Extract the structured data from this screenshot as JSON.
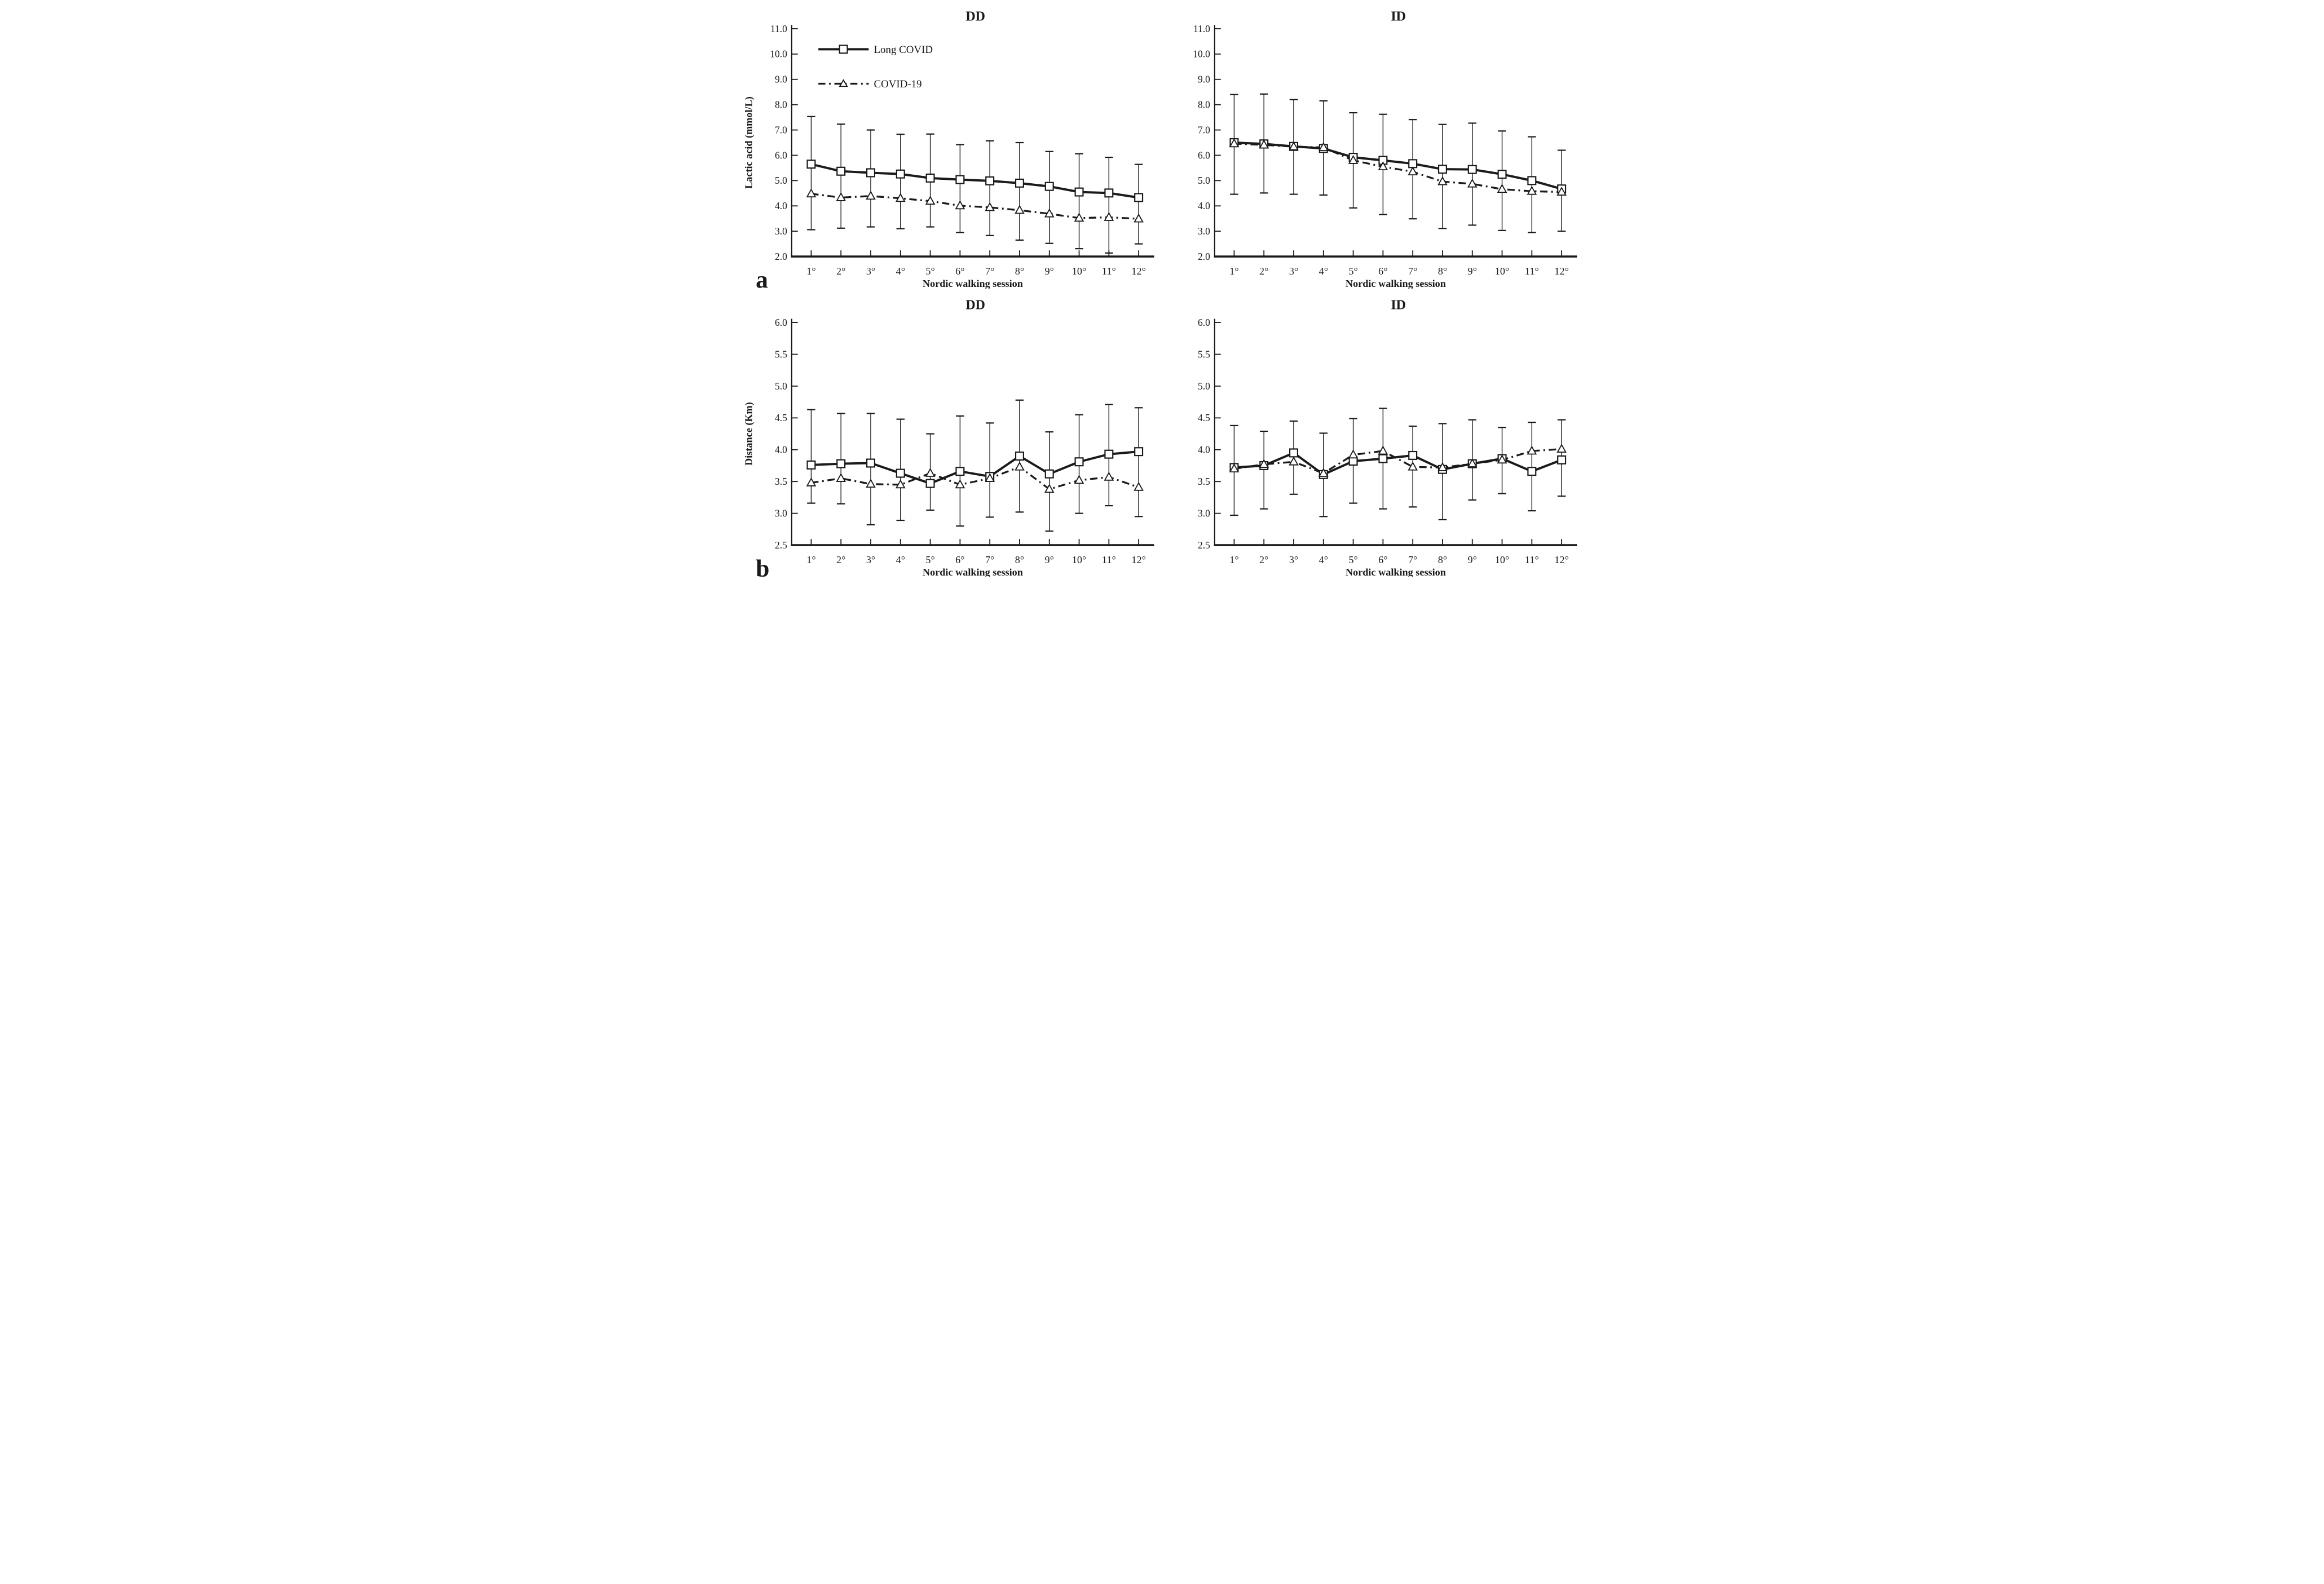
{
  "figure": {
    "background": "#ffffff",
    "ink_color": "#1a1a1a",
    "x_axis_title": "Nordic walking session",
    "legend": {
      "items": [
        {
          "label": "Long COVID",
          "marker": "square",
          "line": "solid"
        },
        {
          "label": "COVID-19",
          "marker": "triangle",
          "line": "dashdot"
        }
      ]
    }
  },
  "chart_data": [
    {
      "id": "dd-lactic",
      "type": "line",
      "panel_letter": "a",
      "title": "DD",
      "ylabel": "Lactic acid (mmol/L)",
      "xlabel": "Nordic walking session",
      "ylim": [
        2.0,
        11.0
      ],
      "ytick_step": 1.0,
      "grid": false,
      "legend": true,
      "y_tick_labels": [
        "11.0",
        "10.0",
        "9.0",
        "8.0",
        "7.0",
        "6.0",
        "5.0",
        "4.0",
        "3.0",
        "2.0"
      ],
      "categories": [
        "1°",
        "2°",
        "3°",
        "4°",
        "5°",
        "6°",
        "7°",
        "8°",
        "9°",
        "10°",
        "11°",
        "12°"
      ],
      "series": [
        {
          "name": "Long COVID",
          "marker": "square",
          "line": "solid",
          "values": [
            5.65,
            5.37,
            5.31,
            5.26,
            5.1,
            5.04,
            4.99,
            4.9,
            4.77,
            4.55,
            4.51,
            4.33
          ]
        },
        {
          "name": "COVID-19",
          "marker": "triangle",
          "line": "dashdot",
          "values": [
            4.48,
            4.33,
            4.39,
            4.3,
            4.19,
            4.01,
            3.94,
            3.83,
            3.69,
            3.52,
            3.55,
            3.49
          ]
        }
      ],
      "error_bars": {
        "top": [
          7.53,
          7.23,
          7.0,
          6.83,
          6.84,
          6.42,
          6.57,
          6.5,
          6.15,
          6.06,
          5.92,
          5.64
        ],
        "bottom": [
          3.06,
          3.12,
          3.17,
          3.1,
          3.17,
          2.95,
          2.83,
          2.65,
          2.52,
          2.31,
          2.14,
          2.5
        ]
      }
    },
    {
      "id": "id-lactic",
      "type": "line",
      "panel_letter": "",
      "title": "ID",
      "ylabel": "",
      "xlabel": "Nordic walking session",
      "ylim": [
        2.0,
        11.0
      ],
      "ytick_step": 1.0,
      "grid": false,
      "legend": false,
      "y_tick_labels": [
        "11.0",
        "10.0",
        "9.0",
        "8.0",
        "7.0",
        "6.0",
        "5.0",
        "4.0",
        "3.0",
        "2.0"
      ],
      "categories": [
        "1°",
        "2°",
        "3°",
        "4°",
        "5°",
        "6°",
        "7°",
        "8°",
        "9°",
        "10°",
        "11°",
        "12°"
      ],
      "series": [
        {
          "name": "Long COVID",
          "marker": "square",
          "line": "solid",
          "values": [
            6.5,
            6.45,
            6.35,
            6.27,
            5.92,
            5.8,
            5.67,
            5.45,
            5.44,
            5.25,
            5.0,
            4.67
          ]
        },
        {
          "name": "COVID-19",
          "marker": "triangle",
          "line": "dashdot",
          "values": [
            6.46,
            6.41,
            6.34,
            6.31,
            5.8,
            5.55,
            5.35,
            4.96,
            4.87,
            4.66,
            4.58,
            4.55
          ]
        }
      ],
      "error_bars": {
        "top": [
          8.4,
          8.42,
          8.2,
          8.15,
          7.68,
          7.62,
          7.41,
          7.22,
          7.27,
          6.96,
          6.73,
          6.2
        ],
        "bottom": [
          4.46,
          4.51,
          4.46,
          4.43,
          3.92,
          3.66,
          3.49,
          3.11,
          3.24,
          3.03,
          2.95,
          3.0
        ]
      }
    },
    {
      "id": "dd-distance",
      "type": "line",
      "panel_letter": "b",
      "title": "DD",
      "ylabel": "Distance (Km)",
      "xlabel": "Nordic walking session",
      "ylim": [
        2.5,
        6.0
      ],
      "ytick_step": 0.5,
      "grid": false,
      "legend": false,
      "y_tick_labels": [
        "6.0",
        "5.5",
        "5.0",
        "4.5",
        "4.0",
        "3.5",
        "3.0",
        "2.5"
      ],
      "categories": [
        "1°",
        "2°",
        "3°",
        "4°",
        "5°",
        "6°",
        "7°",
        "8°",
        "9°",
        "10°",
        "11°",
        "12°"
      ],
      "series": [
        {
          "name": "Long COVID",
          "marker": "square",
          "line": "solid",
          "values": [
            3.76,
            3.78,
            3.79,
            3.63,
            3.47,
            3.66,
            3.58,
            3.9,
            3.62,
            3.81,
            3.93,
            3.97
          ]
        },
        {
          "name": "COVID-19",
          "marker": "triangle",
          "line": "dashdot",
          "values": [
            3.48,
            3.55,
            3.46,
            3.45,
            3.63,
            3.45,
            3.55,
            3.73,
            3.38,
            3.52,
            3.57,
            3.41
          ]
        }
      ],
      "error_bars": {
        "top": [
          4.63,
          4.57,
          4.57,
          4.48,
          4.25,
          4.53,
          4.42,
          4.78,
          4.28,
          4.55,
          4.71,
          4.66
        ],
        "bottom": [
          3.16,
          3.15,
          2.82,
          2.89,
          3.05,
          2.8,
          2.94,
          3.02,
          2.72,
          3.0,
          3.12,
          2.95
        ]
      }
    },
    {
      "id": "id-distance",
      "type": "line",
      "panel_letter": "",
      "title": "ID",
      "ylabel": "",
      "xlabel": "Nordic walking session",
      "ylim": [
        2.5,
        6.0
      ],
      "ytick_step": 0.5,
      "grid": false,
      "legend": false,
      "y_tick_labels": [
        "6.0",
        "5.5",
        "5.0",
        "4.5",
        "4.0",
        "3.5",
        "3.0",
        "2.5"
      ],
      "categories": [
        "1°",
        "2°",
        "3°",
        "4°",
        "5°",
        "6°",
        "7°",
        "8°",
        "9°",
        "10°",
        "11°",
        "12°"
      ],
      "series": [
        {
          "name": "Long COVID",
          "marker": "square",
          "line": "solid",
          "values": [
            3.72,
            3.75,
            3.95,
            3.61,
            3.82,
            3.86,
            3.91,
            3.69,
            3.78,
            3.86,
            3.66,
            3.84
          ]
        },
        {
          "name": "COVID-19",
          "marker": "triangle",
          "line": "dashdot",
          "values": [
            3.7,
            3.77,
            3.81,
            3.63,
            3.92,
            3.98,
            3.73,
            3.72,
            3.78,
            3.84,
            3.98,
            4.01
          ]
        }
      ],
      "error_bars": {
        "top": [
          4.38,
          4.29,
          4.45,
          4.26,
          4.49,
          4.65,
          4.37,
          4.41,
          4.47,
          4.35,
          4.43,
          4.47
        ],
        "bottom": [
          2.97,
          3.07,
          3.3,
          2.95,
          3.16,
          3.07,
          3.1,
          2.9,
          3.21,
          3.31,
          3.04,
          3.27
        ]
      }
    }
  ]
}
